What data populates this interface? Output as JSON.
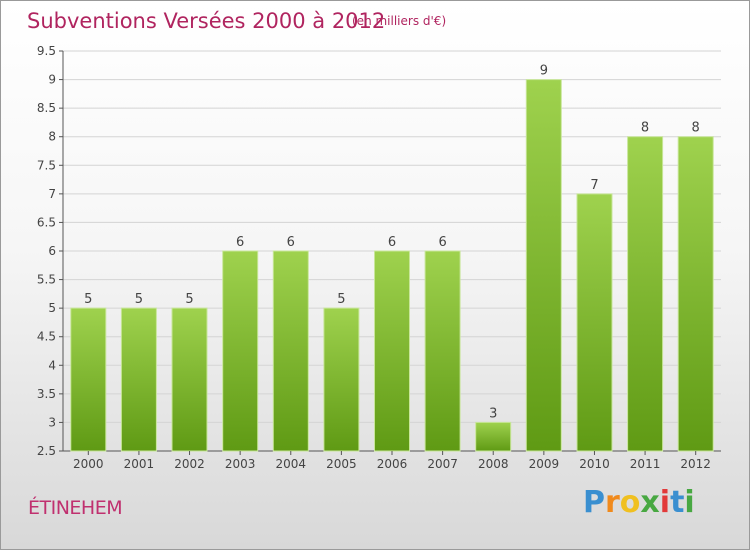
{
  "chart_data": {
    "type": "bar",
    "title": "Subventions Versées 2000 à 2012",
    "subtitle": "(en milliers d'€)",
    "categories": [
      "2000",
      "2001",
      "2002",
      "2003",
      "2004",
      "2005",
      "2006",
      "2007",
      "2008",
      "2009",
      "2010",
      "2011",
      "2012"
    ],
    "values": [
      5,
      5,
      5,
      6,
      6,
      5,
      6,
      6,
      3,
      9,
      7,
      8,
      8
    ],
    "data_labels": [
      "5",
      "5",
      "5",
      "6",
      "6",
      "5",
      "6",
      "6",
      "3",
      "9",
      "7",
      "8",
      "8"
    ],
    "ylim": [
      2.5,
      9.5
    ],
    "yticks": [
      "2.5",
      "3",
      "3.5",
      "4",
      "4.5",
      "5",
      "5.5",
      "6",
      "6.5",
      "7",
      "7.5",
      "8",
      "8.5",
      "9",
      "9.5"
    ],
    "grid": true,
    "colors": {
      "bar_top": "#9fd24e",
      "bar_bottom": "#5f9a14",
      "title": "#b0245f"
    }
  },
  "location": "ÉTINEHEM",
  "brand": {
    "letters": [
      "P",
      "r",
      "o",
      "x",
      "i",
      "t",
      "i"
    ],
    "colors": [
      "#3a8fd0",
      "#f08a1c",
      "#f0c020",
      "#48a842",
      "#e23a3a",
      "#3a8fd0",
      "#48a842"
    ]
  }
}
